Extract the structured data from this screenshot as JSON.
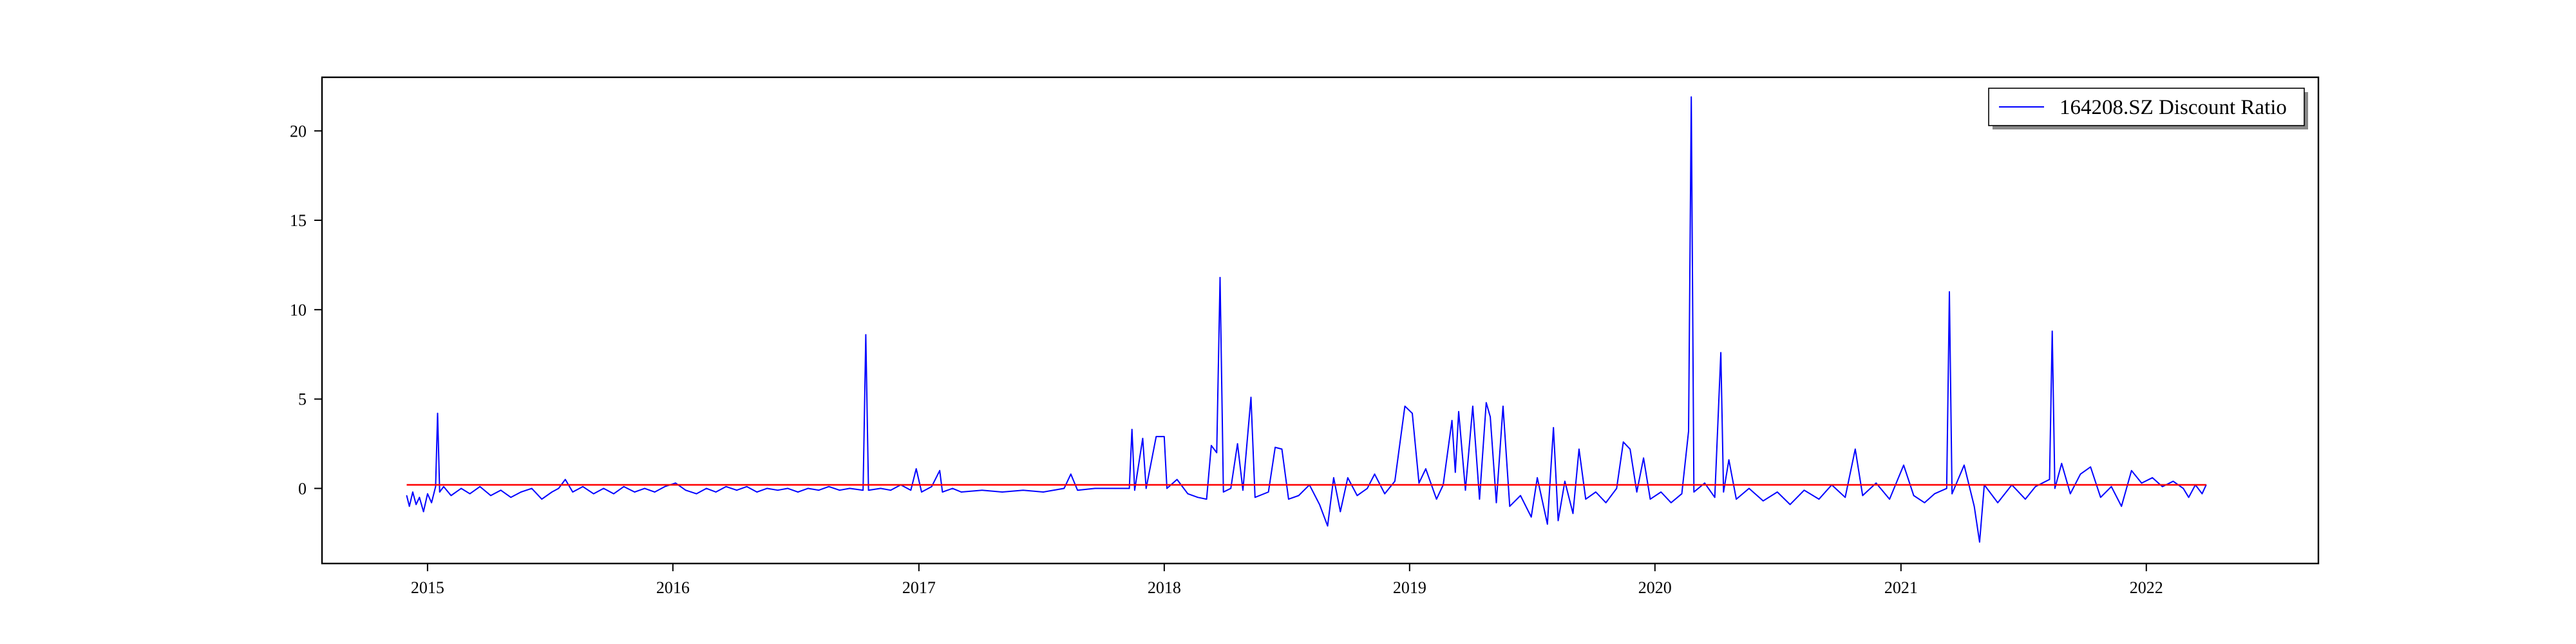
{
  "chart_data": {
    "type": "line",
    "title": "",
    "xlabel": "",
    "ylabel": "",
    "x_ticks": [
      "2015",
      "2016",
      "2017",
      "2018",
      "2019",
      "2020",
      "2021",
      "2022"
    ],
    "y_ticks": [
      0,
      5,
      10,
      15,
      20
    ],
    "xlim": [
      "2014-07-28",
      "2022-09-14"
    ],
    "ylim": [
      -4.2,
      23.0
    ],
    "grid": false,
    "legend_position": "top-right",
    "series": [
      {
        "name": "164208.SZ Discount Ratio",
        "color": "#0000ff",
        "points": [
          [
            "2014-12-01",
            -0.4
          ],
          [
            "2014-12-05",
            -1.0
          ],
          [
            "2014-12-10",
            -0.2
          ],
          [
            "2014-12-15",
            -0.9
          ],
          [
            "2014-12-20",
            -0.5
          ],
          [
            "2014-12-26",
            -1.3
          ],
          [
            "2015-01-01",
            -0.3
          ],
          [
            "2015-01-07",
            -0.8
          ],
          [
            "2015-01-13",
            0.1
          ],
          [
            "2015-01-16",
            4.2
          ],
          [
            "2015-01-19",
            -0.2
          ],
          [
            "2015-01-25",
            0.1
          ],
          [
            "2015-02-05",
            -0.4
          ],
          [
            "2015-02-20",
            0.0
          ],
          [
            "2015-03-05",
            -0.3
          ],
          [
            "2015-03-20",
            0.1
          ],
          [
            "2015-04-05",
            -0.4
          ],
          [
            "2015-04-20",
            -0.1
          ],
          [
            "2015-05-05",
            -0.5
          ],
          [
            "2015-05-20",
            -0.2
          ],
          [
            "2015-06-05",
            0.0
          ],
          [
            "2015-06-20",
            -0.6
          ],
          [
            "2015-07-05",
            -0.2
          ],
          [
            "2015-07-15",
            0.0
          ],
          [
            "2015-07-25",
            0.5
          ],
          [
            "2015-08-05",
            -0.2
          ],
          [
            "2015-08-20",
            0.1
          ],
          [
            "2015-09-05",
            -0.3
          ],
          [
            "2015-09-20",
            0.0
          ],
          [
            "2015-10-05",
            -0.3
          ],
          [
            "2015-10-20",
            0.1
          ],
          [
            "2015-11-05",
            -0.2
          ],
          [
            "2015-11-20",
            0.0
          ],
          [
            "2015-12-05",
            -0.2
          ],
          [
            "2015-12-20",
            0.1
          ],
          [
            "2016-01-05",
            0.3
          ],
          [
            "2016-01-20",
            -0.1
          ],
          [
            "2016-02-05",
            -0.3
          ],
          [
            "2016-02-20",
            0.0
          ],
          [
            "2016-03-05",
            -0.2
          ],
          [
            "2016-03-20",
            0.1
          ],
          [
            "2016-04-05",
            -0.1
          ],
          [
            "2016-04-20",
            0.1
          ],
          [
            "2016-05-05",
            -0.2
          ],
          [
            "2016-05-20",
            0.0
          ],
          [
            "2016-06-05",
            -0.1
          ],
          [
            "2016-06-20",
            0.0
          ],
          [
            "2016-07-05",
            -0.2
          ],
          [
            "2016-07-20",
            0.0
          ],
          [
            "2016-08-05",
            -0.1
          ],
          [
            "2016-08-20",
            0.1
          ],
          [
            "2016-09-05",
            -0.1
          ],
          [
            "2016-09-20",
            0.0
          ],
          [
            "2016-10-10",
            -0.1
          ],
          [
            "2016-10-14",
            8.6
          ],
          [
            "2016-10-18",
            -0.1
          ],
          [
            "2016-11-05",
            0.0
          ],
          [
            "2016-11-20",
            -0.1
          ],
          [
            "2016-12-05",
            0.2
          ],
          [
            "2016-12-20",
            -0.1
          ],
          [
            "2016-12-28",
            1.1
          ],
          [
            "2017-01-05",
            -0.2
          ],
          [
            "2017-01-20",
            0.1
          ],
          [
            "2017-02-01",
            1.0
          ],
          [
            "2017-02-05",
            -0.2
          ],
          [
            "2017-02-20",
            0.0
          ],
          [
            "2017-03-05",
            -0.2
          ],
          [
            "2017-04-05",
            -0.1
          ],
          [
            "2017-05-05",
            -0.2
          ],
          [
            "2017-06-05",
            -0.1
          ],
          [
            "2017-07-05",
            -0.2
          ],
          [
            "2017-08-05",
            0.0
          ],
          [
            "2017-08-15",
            0.8
          ],
          [
            "2017-08-25",
            -0.1
          ],
          [
            "2017-09-20",
            0.0
          ],
          [
            "2017-10-20",
            0.0
          ],
          [
            "2017-11-10",
            0.0
          ],
          [
            "2017-11-14",
            3.3
          ],
          [
            "2017-11-18",
            -0.1
          ],
          [
            "2017-11-30",
            2.8
          ],
          [
            "2017-12-05",
            0.0
          ],
          [
            "2017-12-20",
            2.9
          ],
          [
            "2018-01-01",
            2.9
          ],
          [
            "2018-01-05",
            0.0
          ],
          [
            "2018-01-20",
            0.5
          ],
          [
            "2018-02-05",
            -0.3
          ],
          [
            "2018-02-20",
            -0.5
          ],
          [
            "2018-03-05",
            -0.6
          ],
          [
            "2018-03-12",
            2.4
          ],
          [
            "2018-03-20",
            2.0
          ],
          [
            "2018-03-25",
            11.8
          ],
          [
            "2018-03-30",
            -0.2
          ],
          [
            "2018-04-10",
            0.0
          ],
          [
            "2018-04-20",
            2.5
          ],
          [
            "2018-04-28",
            -0.1
          ],
          [
            "2018-05-10",
            5.1
          ],
          [
            "2018-05-16",
            -0.5
          ],
          [
            "2018-06-05",
            -0.2
          ],
          [
            "2018-06-15",
            2.3
          ],
          [
            "2018-06-25",
            2.2
          ],
          [
            "2018-07-05",
            -0.6
          ],
          [
            "2018-07-20",
            -0.4
          ],
          [
            "2018-08-05",
            0.2
          ],
          [
            "2018-08-20",
            -0.9
          ],
          [
            "2018-09-01",
            -2.1
          ],
          [
            "2018-09-10",
            0.6
          ],
          [
            "2018-09-20",
            -1.3
          ],
          [
            "2018-10-01",
            0.6
          ],
          [
            "2018-10-15",
            -0.4
          ],
          [
            "2018-10-30",
            0.0
          ],
          [
            "2018-11-10",
            0.8
          ],
          [
            "2018-11-25",
            -0.3
          ],
          [
            "2018-12-10",
            0.4
          ],
          [
            "2018-12-25",
            4.6
          ],
          [
            "2019-01-05",
            4.2
          ],
          [
            "2019-01-15",
            0.3
          ],
          [
            "2019-01-25",
            1.1
          ],
          [
            "2019-02-10",
            -0.6
          ],
          [
            "2019-02-20",
            0.2
          ],
          [
            "2019-03-05",
            3.8
          ],
          [
            "2019-03-10",
            0.9
          ],
          [
            "2019-03-15",
            4.3
          ],
          [
            "2019-03-25",
            -0.1
          ],
          [
            "2019-04-05",
            4.6
          ],
          [
            "2019-04-15",
            -0.6
          ],
          [
            "2019-04-25",
            4.8
          ],
          [
            "2019-05-01",
            4.0
          ],
          [
            "2019-05-10",
            -0.8
          ],
          [
            "2019-05-20",
            4.6
          ],
          [
            "2019-05-30",
            -1.0
          ],
          [
            "2019-06-15",
            -0.4
          ],
          [
            "2019-07-01",
            -1.6
          ],
          [
            "2019-07-10",
            0.6
          ],
          [
            "2019-07-25",
            -2.0
          ],
          [
            "2019-08-03",
            3.4
          ],
          [
            "2019-08-10",
            -1.8
          ],
          [
            "2019-08-20",
            0.4
          ],
          [
            "2019-09-01",
            -1.4
          ],
          [
            "2019-09-10",
            2.2
          ],
          [
            "2019-09-20",
            -0.6
          ],
          [
            "2019-10-05",
            -0.2
          ],
          [
            "2019-10-20",
            -0.8
          ],
          [
            "2019-11-05",
            0.0
          ],
          [
            "2019-11-15",
            2.6
          ],
          [
            "2019-11-25",
            2.2
          ],
          [
            "2019-12-05",
            -0.2
          ],
          [
            "2019-12-15",
            1.7
          ],
          [
            "2019-12-25",
            -0.6
          ],
          [
            "2020-01-10",
            -0.2
          ],
          [
            "2020-01-25",
            -0.8
          ],
          [
            "2020-02-10",
            -0.3
          ],
          [
            "2020-02-20",
            3.2
          ],
          [
            "2020-02-24",
            21.9
          ],
          [
            "2020-02-28",
            -0.2
          ],
          [
            "2020-03-15",
            0.3
          ],
          [
            "2020-03-30",
            -0.5
          ],
          [
            "2020-04-08",
            7.6
          ],
          [
            "2020-04-12",
            -0.2
          ],
          [
            "2020-04-20",
            1.6
          ],
          [
            "2020-05-01",
            -0.6
          ],
          [
            "2020-05-20",
            0.0
          ],
          [
            "2020-06-10",
            -0.7
          ],
          [
            "2020-07-01",
            -0.2
          ],
          [
            "2020-07-20",
            -0.9
          ],
          [
            "2020-08-10",
            -0.1
          ],
          [
            "2020-09-01",
            -0.6
          ],
          [
            "2020-09-20",
            0.2
          ],
          [
            "2020-10-10",
            -0.5
          ],
          [
            "2020-10-25",
            2.2
          ],
          [
            "2020-11-05",
            -0.4
          ],
          [
            "2020-11-25",
            0.3
          ],
          [
            "2020-12-15",
            -0.6
          ],
          [
            "2021-01-05",
            1.3
          ],
          [
            "2021-01-20",
            -0.4
          ],
          [
            "2021-02-05",
            -0.8
          ],
          [
            "2021-02-20",
            -0.3
          ],
          [
            "2021-03-10",
            0.0
          ],
          [
            "2021-03-14",
            11.0
          ],
          [
            "2021-03-18",
            -0.3
          ],
          [
            "2021-04-05",
            1.3
          ],
          [
            "2021-04-20",
            -1.0
          ],
          [
            "2021-04-28",
            -3.0
          ],
          [
            "2021-05-05",
            0.2
          ],
          [
            "2021-05-25",
            -0.8
          ],
          [
            "2021-06-15",
            0.2
          ],
          [
            "2021-07-05",
            -0.6
          ],
          [
            "2021-07-20",
            0.1
          ],
          [
            "2021-08-10",
            0.5
          ],
          [
            "2021-08-14",
            8.8
          ],
          [
            "2021-08-18",
            0.0
          ],
          [
            "2021-08-28",
            1.4
          ],
          [
            "2021-09-10",
            -0.3
          ],
          [
            "2021-09-25",
            0.8
          ],
          [
            "2021-10-10",
            1.2
          ],
          [
            "2021-10-25",
            -0.5
          ],
          [
            "2021-11-10",
            0.1
          ],
          [
            "2021-11-25",
            -1.0
          ],
          [
            "2021-12-10",
            1.0
          ],
          [
            "2021-12-25",
            0.3
          ],
          [
            "2022-01-10",
            0.6
          ],
          [
            "2022-01-25",
            0.1
          ],
          [
            "2022-02-10",
            0.4
          ],
          [
            "2022-02-25",
            0.0
          ],
          [
            "2022-03-05",
            -0.5
          ],
          [
            "2022-03-15",
            0.2
          ],
          [
            "2022-03-25",
            -0.3
          ],
          [
            "2022-03-31",
            0.2
          ]
        ]
      }
    ],
    "reference_line": {
      "y": 0.2,
      "color": "#ff0000"
    }
  }
}
